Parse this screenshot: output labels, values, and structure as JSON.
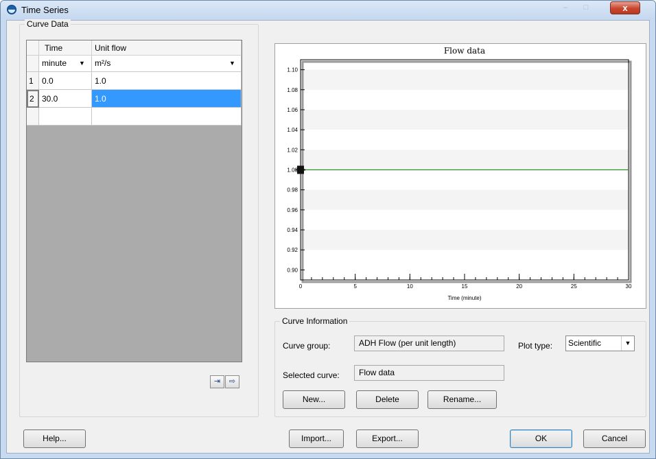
{
  "window": {
    "title": "Time Series",
    "close_glyph": "x"
  },
  "curve_data": {
    "label": "Curve Data",
    "columns": [
      "Time",
      "Unit flow"
    ],
    "units": {
      "time": "minute",
      "flow": "m²/s"
    },
    "rows": [
      {
        "num": "1",
        "time": "0.0",
        "flow": "1.0"
      },
      {
        "num": "2",
        "time": "30.0",
        "flow": "1.0"
      }
    ],
    "insert_row_icon": "insert-row-icon",
    "append_row_icon": "append-row-icon"
  },
  "chart_data": {
    "type": "line",
    "title": "Flow data",
    "xlabel": "Time (minute)",
    "ylabel": "",
    "xlim": [
      0,
      30
    ],
    "ylim": [
      0.89,
      1.11
    ],
    "x_ticks": [
      "0",
      "5",
      "10",
      "15",
      "20",
      "25",
      "30"
    ],
    "y_ticks": [
      "0.90",
      "0.92",
      "0.94",
      "0.96",
      "0.98",
      "1.00",
      "1.02",
      "1.04",
      "1.06",
      "1.08",
      "1.10"
    ],
    "series": [
      {
        "x": [
          0.0,
          30.0
        ],
        "y": [
          1.0,
          1.0
        ],
        "color": "#2e8b2e"
      }
    ],
    "selected_point": {
      "x": 0.0,
      "y": 1.0
    },
    "grid": "alternating horizontal bands"
  },
  "curve_info": {
    "label": "Curve Information",
    "group_label": "Curve group:",
    "group_value": "ADH Flow (per unit length)",
    "plot_type_label": "Plot type:",
    "plot_type_value": "Scientific",
    "selected_label": "Selected curve:",
    "selected_value": "Flow data",
    "new_label": "New...",
    "delete_label": "Delete",
    "rename_label": "Rename..."
  },
  "footer": {
    "help_label": "Help...",
    "import_label": "Import...",
    "export_label": "Export...",
    "ok_label": "OK",
    "cancel_label": "Cancel"
  }
}
